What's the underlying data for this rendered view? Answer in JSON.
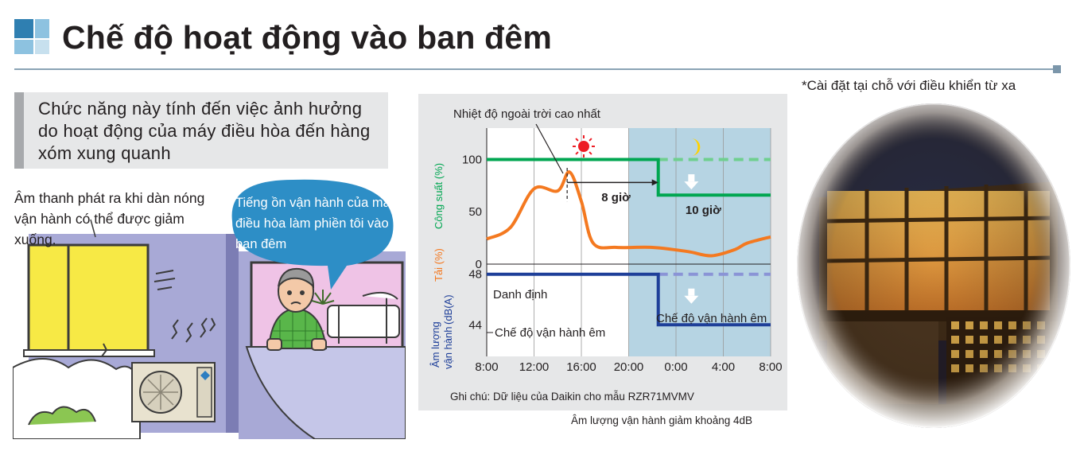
{
  "header": {
    "title": "Chế độ hoạt động vào ban đêm",
    "note": "*Cài đặt tại chỗ với điều khiển từ xa"
  },
  "intro": {
    "text": "Chức năng này tính đến việc ảnh hưởng do hoạt động của máy điều hòa đến hàng xóm xung quanh"
  },
  "illustration": {
    "caption_left": "Âm thanh phát ra khi dàn nóng vận hành có thể được giảm xuống.",
    "speech_bubble": "Tiếng ồn vận hành của máy điều hòa làm phiền tôi vào ban đêm"
  },
  "chart_data": {
    "type": "line",
    "annotation_top": "Nhiệt độ ngoài trời cao nhất",
    "x_ticks": [
      "8:00",
      "12:00",
      "16:00",
      "20:00",
      "0:00",
      "4:00",
      "8:00"
    ],
    "x_hours": [
      0,
      4,
      8,
      12,
      16,
      20,
      24
    ],
    "night_start_hour": 12,
    "upper_panel": {
      "capacity_label": "Công suất (%)",
      "load_label": "Tải (%)",
      "yticks": [
        0,
        50,
        100
      ],
      "ylim": [
        0,
        130
      ],
      "capacity_series": {
        "name": "Công suất",
        "x": [
          0,
          14.5,
          14.5,
          24
        ],
        "y": [
          100,
          100,
          66,
          66
        ],
        "rated_dashed": {
          "x": [
            14.5,
            24
          ],
          "y": [
            100,
            100
          ]
        }
      },
      "load_series": {
        "name": "Tải",
        "x": [
          0,
          2,
          4,
          6,
          7,
          8,
          9,
          11,
          14,
          17,
          19,
          21,
          22,
          24
        ],
        "y": [
          24,
          35,
          72,
          70,
          88,
          60,
          20,
          16,
          16,
          12,
          8,
          14,
          20,
          26
        ]
      },
      "label_8h": "8 giờ",
      "label_10h": "10 giờ"
    },
    "lower_panel": {
      "ylabel_line1": "Âm lượng",
      "ylabel_line2": "vận hành",
      "ylabel_unit": "(dB(A)",
      "yticks": [
        44,
        48
      ],
      "ylim": [
        41.5,
        48.8
      ],
      "rated_label": "Danh định",
      "quiet_label_left": "Chế độ vận hành êm",
      "quiet_label_right": "Chế độ vận hành êm",
      "sound_series": {
        "name": "Âm lượng vận hành",
        "x": [
          0,
          14.5,
          14.5,
          24
        ],
        "y": [
          48,
          48,
          44,
          44
        ],
        "rated_dashed": {
          "x": [
            14.5,
            24
          ],
          "y": [
            48,
            48
          ]
        }
      }
    },
    "note": "Ghi chú: Dữ liệu của Daikin cho mẫu RZR71MVMV",
    "subnote": "Âm lượng vận hành giảm khoảng 4dB",
    "colors": {
      "capacity": "#00a651",
      "load": "#f47920",
      "sound": "#1e3f99",
      "night_bg": "#b6d4e3",
      "sun": "#ed1c24",
      "moon": "#ffd200"
    }
  }
}
